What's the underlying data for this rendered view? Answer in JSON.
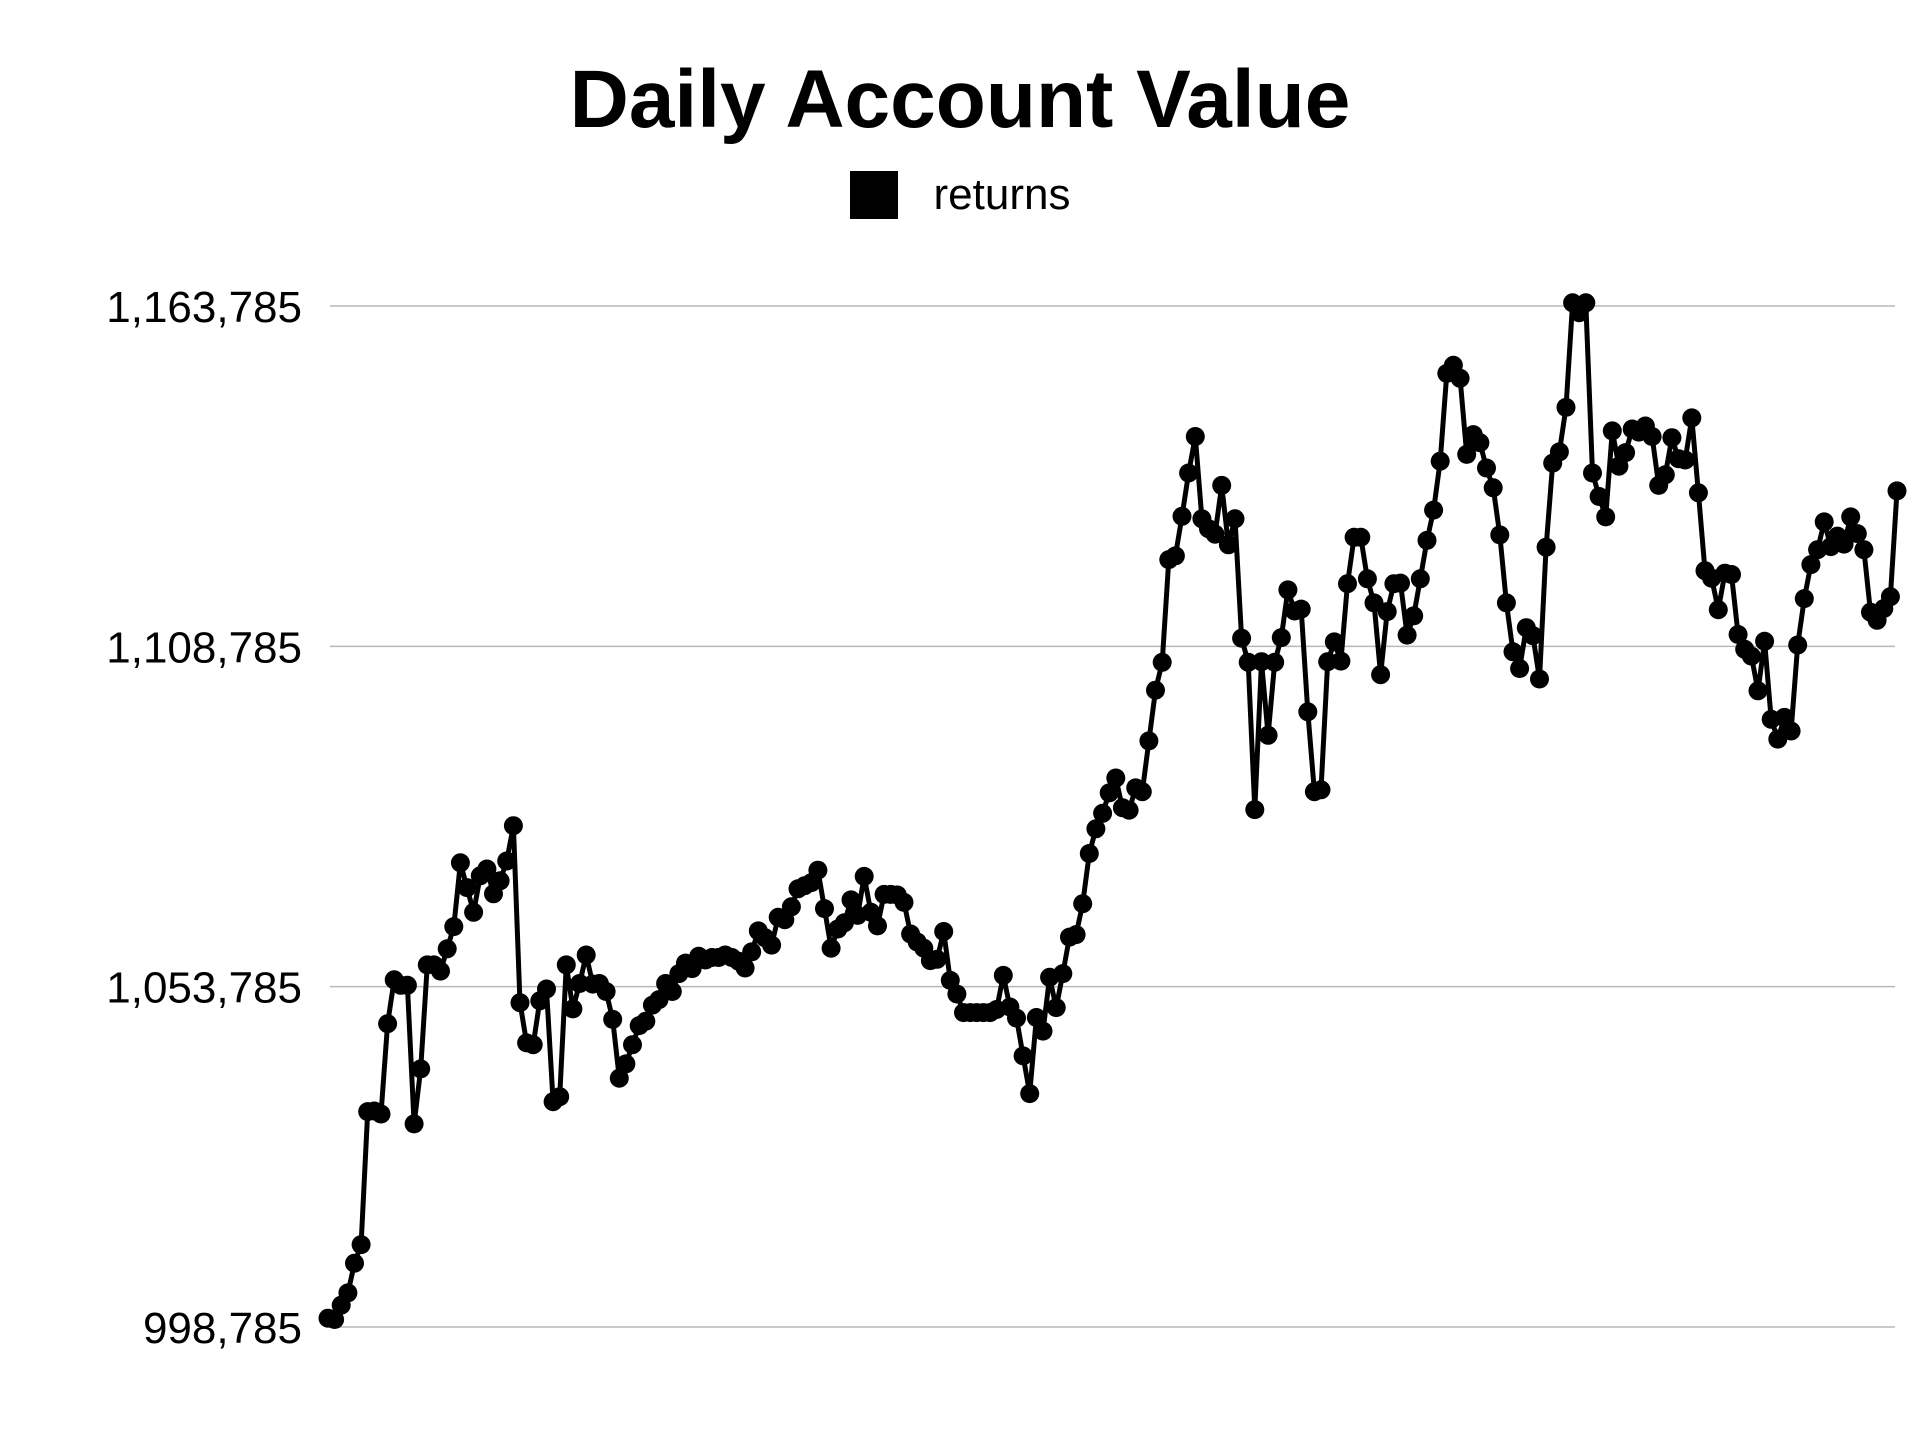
{
  "chart_data": {
    "type": "line",
    "title": "Daily Account Value",
    "xlabel": "",
    "ylabel": "",
    "grid": true,
    "legend_position": "top-center",
    "series": [
      {
        "name": "returns",
        "color": "#000000",
        "values": [
          1000200,
          1000000,
          1002300,
          1004300,
          1009100,
          1012100,
          1033600,
          1033700,
          1033200,
          1047800,
          1054900,
          1054000,
          1054000,
          1031600,
          1040500,
          1057300,
          1057300,
          1056300,
          1059900,
          1063500,
          1073800,
          1069800,
          1065800,
          1071700,
          1072800,
          1068800,
          1070900,
          1074100,
          1079800,
          1051200,
          1044700,
          1044400,
          1051500,
          1053400,
          1035200,
          1036000,
          1057300,
          1050200,
          1054300,
          1058900,
          1054200,
          1054300,
          1053000,
          1048500,
          1039000,
          1041300,
          1044400,
          1047500,
          1048200,
          1050800,
          1051700,
          1054300,
          1053000,
          1055900,
          1057600,
          1056700,
          1058700,
          1058100,
          1058500,
          1058500,
          1058900,
          1058500,
          1057900,
          1056800,
          1059400,
          1062800,
          1061700,
          1060500,
          1065000,
          1064600,
          1066700,
          1069600,
          1070100,
          1070600,
          1072600,
          1066400,
          1060000,
          1063100,
          1064100,
          1067800,
          1065300,
          1071600,
          1065800,
          1063600,
          1068700,
          1068700,
          1068600,
          1067400,
          1062300,
          1061000,
          1060000,
          1058000,
          1058200,
          1062700,
          1054800,
          1052600,
          1049600,
          1049600,
          1049600,
          1049600,
          1049600,
          1050100,
          1055600,
          1050500,
          1048700,
          1042600,
          1036500,
          1048800,
          1046600,
          1055300,
          1050400,
          1055900,
          1061800,
          1062200,
          1067200,
          1075300,
          1079300,
          1081800,
          1085100,
          1087500,
          1082700,
          1082300,
          1085900,
          1085300,
          1093500,
          1101700,
          1106200,
          1122800,
          1123400,
          1129800,
          1136800,
          1142700,
          1129400,
          1127800,
          1126900,
          1134800,
          1125200,
          1129400,
          1110100,
          1106200,
          1082400,
          1106300,
          1094400,
          1106200,
          1110200,
          1117900,
          1114500,
          1114800,
          1098200,
          1085300,
          1085600,
          1106300,
          1109500,
          1106400,
          1118900,
          1126400,
          1126400,
          1119700,
          1115800,
          1104200,
          1114400,
          1118900,
          1119000,
          1110600,
          1113700,
          1119700,
          1125900,
          1130800,
          1138700,
          1152900,
          1154200,
          1152100,
          1139800,
          1143000,
          1141700,
          1137600,
          1134400,
          1126800,
          1115800,
          1107900,
          1105200,
          1111800,
          1110500,
          1103500,
          1124800,
          1138400,
          1140200,
          1147400,
          1164300,
          1162700,
          1164300,
          1136800,
          1133000,
          1129700,
          1143600,
          1137900,
          1140100,
          1143900,
          1143400,
          1144400,
          1142700,
          1134800,
          1136500,
          1142500,
          1139100,
          1138900,
          1145700,
          1133600,
          1121000,
          1119800,
          1114700,
          1120600,
          1120400,
          1110700,
          1108300,
          1107200,
          1101600,
          1109600,
          1097000,
          1093800,
          1097300,
          1095100,
          1109000,
          1116500,
          1122000,
          1124400,
          1128900,
          1124900,
          1126600,
          1125300,
          1129700,
          1127000,
          1124400,
          1114300,
          1113000,
          1114900,
          1116800,
          1133900
        ]
      }
    ],
    "ylim": [
      998785,
      1163785
    ],
    "yticks": [
      998785,
      1053785,
      1108785,
      1163785
    ],
    "ytick_labels": [
      "998,785",
      "1,053,785",
      "1,108,785",
      "1,163,785"
    ]
  }
}
